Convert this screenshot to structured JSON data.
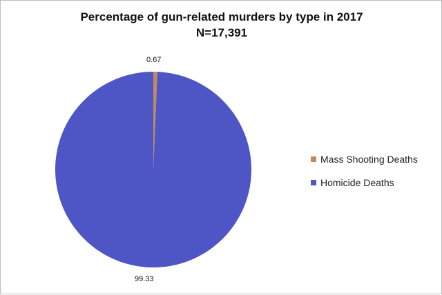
{
  "chart_data": {
    "type": "pie",
    "title_line1": "Percentage of gun-related murders by type in 2017",
    "title_line2": "N=17,391",
    "slices": [
      {
        "label": "Mass Shooting Deaths",
        "value": 0.67,
        "value_text": "0.67",
        "color": "#c0895f"
      },
      {
        "label": "Homicide Deaths",
        "value": 99.33,
        "value_text": "99.33",
        "color": "#4e55c4"
      }
    ],
    "legend_position": "right"
  }
}
